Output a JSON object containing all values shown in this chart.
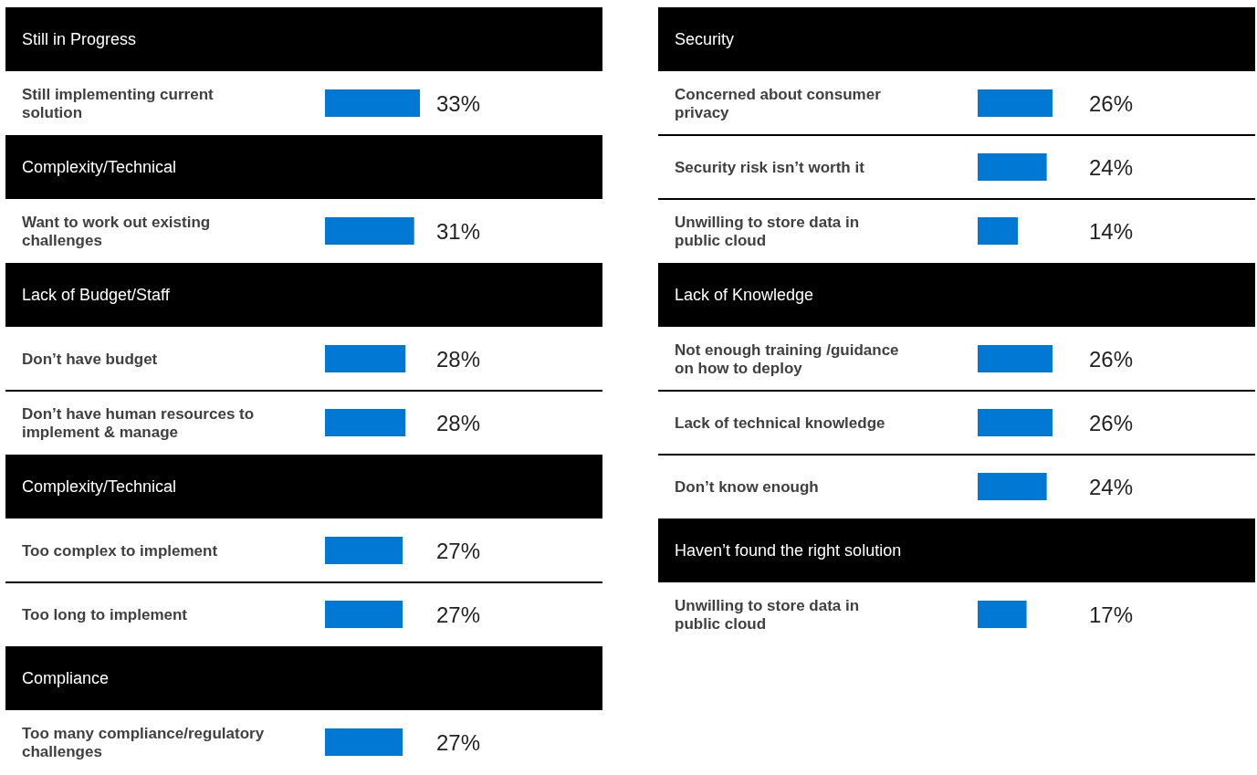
{
  "chart_data": [
    {
      "type": "bar",
      "orientation": "horizontal",
      "title": "Still in Progress",
      "categories": [
        "Still implementing current solution"
      ],
      "values": [
        33
      ],
      "value_labels": [
        "33%"
      ],
      "color": "#0078d4"
    },
    {
      "type": "bar",
      "orientation": "horizontal",
      "title": "Complexity/Technical",
      "categories": [
        "Want to work out existing challenges"
      ],
      "values": [
        31
      ],
      "value_labels": [
        "31%"
      ],
      "color": "#0078d4"
    },
    {
      "type": "bar",
      "orientation": "horizontal",
      "title": "Lack of Budget/Staff",
      "categories": [
        "Don’t have budget",
        "Don’t have human resources to implement & manage"
      ],
      "values": [
        28,
        28
      ],
      "value_labels": [
        "28%",
        "28%"
      ],
      "color": "#0078d4"
    },
    {
      "type": "bar",
      "orientation": "horizontal",
      "title": "Complexity/Technical",
      "categories": [
        "Too complex to implement",
        "Too long to implement"
      ],
      "values": [
        27,
        27
      ],
      "value_labels": [
        "27%",
        "27%"
      ],
      "color": "#0078d4"
    },
    {
      "type": "bar",
      "orientation": "horizontal",
      "title": "Compliance",
      "categories": [
        "Too many compliance/regulatory challenges"
      ],
      "values": [
        27
      ],
      "value_labels": [
        "27%"
      ],
      "color": "#0078d4"
    },
    {
      "type": "bar",
      "orientation": "horizontal",
      "title": "Security",
      "categories": [
        "Concerned about consumer privacy",
        "Security risk isn’t worth it",
        "Unwilling to store data in public cloud"
      ],
      "values": [
        26,
        24,
        14
      ],
      "value_labels": [
        "26%",
        "24%",
        "14%"
      ],
      "color": "#0078d4"
    },
    {
      "type": "bar",
      "orientation": "horizontal",
      "title": "Lack of Knowledge",
      "categories": [
        "Not enough training /guidance on how to deploy",
        "Lack of technical knowledge",
        "Don’t know enough"
      ],
      "values": [
        26,
        26,
        24
      ],
      "value_labels": [
        "26%",
        "26%",
        "24%"
      ],
      "color": "#0078d4"
    },
    {
      "type": "bar",
      "orientation": "horizontal",
      "title": "Haven’t found the right solution",
      "categories": [
        "Unwilling to store data in public cloud"
      ],
      "values": [
        17
      ],
      "value_labels": [
        "17%"
      ],
      "color": "#0078d4"
    }
  ]
}
